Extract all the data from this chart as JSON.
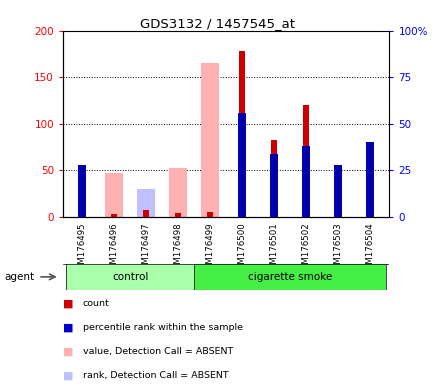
{
  "title": "GDS3132 / 1457545_at",
  "samples": [
    "GSM176495",
    "GSM176496",
    "GSM176497",
    "GSM176498",
    "GSM176499",
    "GSM176500",
    "GSM176501",
    "GSM176502",
    "GSM176503",
    "GSM176504"
  ],
  "count": [
    50,
    3,
    7,
    4,
    5,
    178,
    83,
    120,
    50,
    72
  ],
  "percentile_rank": [
    28,
    0,
    0,
    0,
    0,
    56,
    34,
    38,
    28,
    40
  ],
  "absent_value": [
    0,
    47,
    13,
    53,
    165,
    0,
    0,
    0,
    0,
    0
  ],
  "absent_rank": [
    0,
    0,
    15,
    0,
    0,
    0,
    0,
    0,
    0,
    0
  ],
  "detection_absent": [
    false,
    true,
    true,
    true,
    true,
    false,
    false,
    false,
    false,
    false
  ],
  "groups": [
    "control",
    "control",
    "control",
    "control",
    "cigarette smoke",
    "cigarette smoke",
    "cigarette smoke",
    "cigarette smoke",
    "cigarette smoke",
    "cigarette smoke"
  ],
  "ylim_left": [
    0,
    200
  ],
  "ylim_right": [
    0,
    100
  ],
  "yticks_left": [
    0,
    50,
    100,
    150,
    200
  ],
  "ytick_labels_left": [
    "0",
    "50",
    "100",
    "150",
    "200"
  ],
  "ytick_labels_right": [
    "0",
    "25",
    "50",
    "75",
    "100%"
  ],
  "legend_items": [
    "count",
    "percentile rank within the sample",
    "value, Detection Call = ABSENT",
    "rank, Detection Call = ABSENT"
  ],
  "legend_colors": [
    "#CC0000",
    "#0000CC",
    "#FFB0B0",
    "#C0C0FF"
  ],
  "color_count": "#CC0000",
  "color_rank": "#0000AA",
  "color_absent_value": "#FFB0B0",
  "color_absent_rank": "#C0C0FF",
  "color_control": "#AAFFAA",
  "color_smoke": "#44EE44",
  "color_xtick_bg": "#CCCCCC",
  "agent_label": "agent"
}
